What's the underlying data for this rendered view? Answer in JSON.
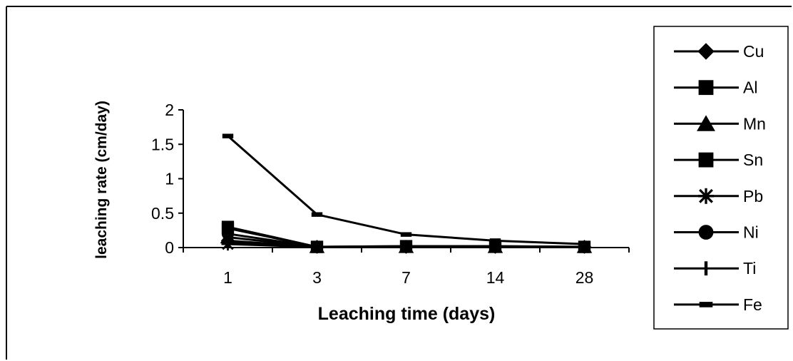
{
  "chart_data": {
    "type": "line",
    "title": "",
    "xlabel": "Leaching time (days)",
    "ylabel": "leaching rate (cm/day)",
    "categories": [
      "1",
      "3",
      "7",
      "14",
      "28"
    ],
    "yticks": [
      "0",
      "0.5",
      "1",
      "1.5",
      "2"
    ],
    "ylim": [
      0,
      2
    ],
    "grid": false,
    "legend_position": "right",
    "series": [
      {
        "name": "Cu",
        "marker": "diamond",
        "values": [
          0.1,
          0.01,
          0.01,
          0.01,
          0.01
        ]
      },
      {
        "name": "Al",
        "marker": "square",
        "values": [
          0.28,
          0.01,
          0.02,
          0.02,
          0.01
        ]
      },
      {
        "name": "Mn",
        "marker": "triangle",
        "values": [
          0.15,
          0.01,
          0.01,
          0.01,
          0.01
        ]
      },
      {
        "name": "Sn",
        "marker": "square",
        "values": [
          0.3,
          0.01,
          0.02,
          0.02,
          0.01
        ]
      },
      {
        "name": "Pb",
        "marker": "asterisk",
        "values": [
          0.05,
          0.01,
          0.01,
          0.01,
          0.01
        ]
      },
      {
        "name": "Ni",
        "marker": "circle",
        "values": [
          0.2,
          0.01,
          0.01,
          0.01,
          0.01
        ]
      },
      {
        "name": "Ti",
        "marker": "bar",
        "values": [
          0.08,
          0.01,
          0.01,
          0.01,
          0.01
        ]
      },
      {
        "name": "Fe",
        "marker": "dash",
        "values": [
          1.62,
          0.48,
          0.19,
          0.1,
          0.05
        ]
      }
    ],
    "colors": {
      "line": "#000000",
      "background": "#ffffff"
    }
  }
}
